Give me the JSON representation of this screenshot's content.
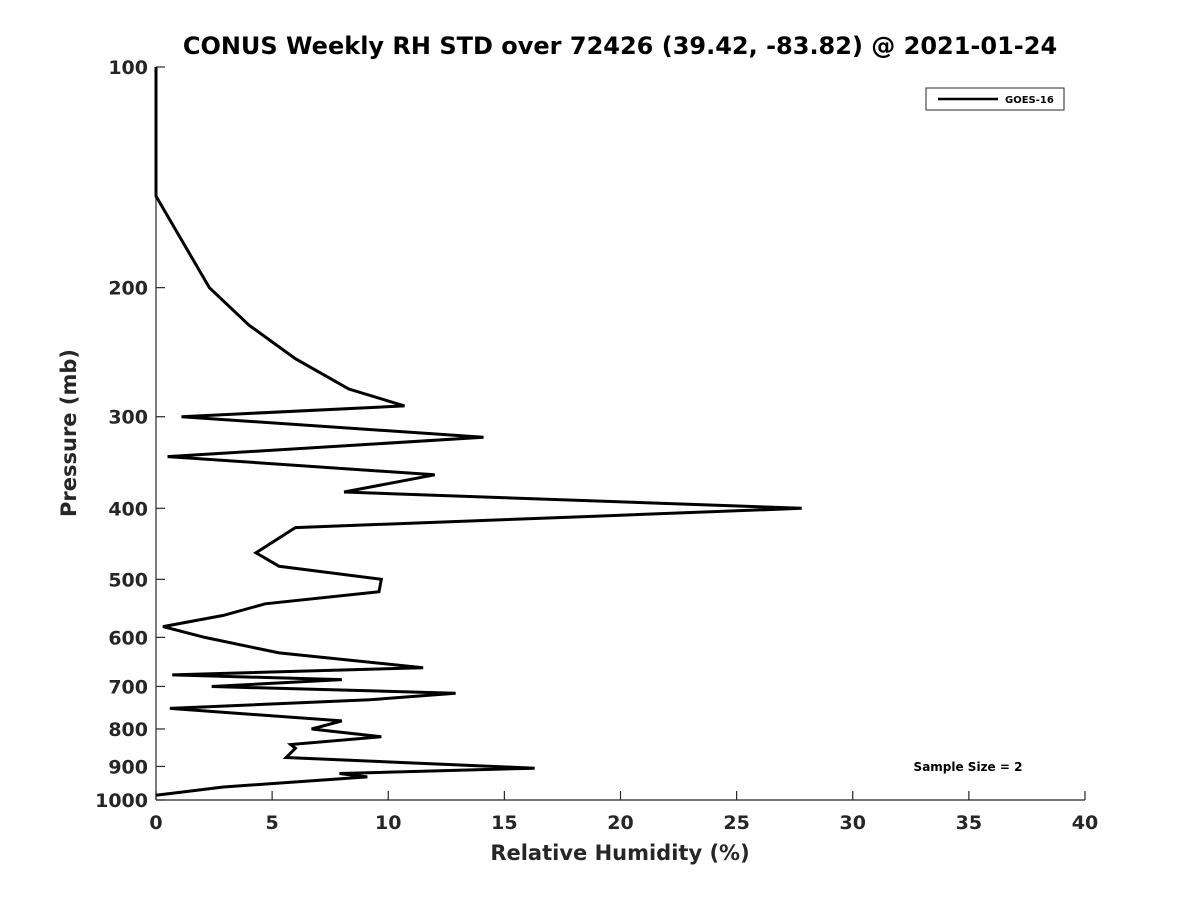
{
  "chart_data": {
    "type": "line",
    "title": "CONUS Weekly RH STD over 72426 (39.42, -83.82) @ 2021-01-24",
    "xlabel": "Relative Humidity (%)",
    "ylabel": "Pressure (mb)",
    "xlim": [
      0,
      40
    ],
    "ylim": [
      100,
      1000
    ],
    "yscale": "log",
    "y_reversed": true,
    "xticks": [
      0,
      5,
      10,
      15,
      20,
      25,
      30,
      35,
      40
    ],
    "yticks": [
      100,
      200,
      300,
      400,
      500,
      600,
      700,
      800,
      900,
      1000
    ],
    "grid": false,
    "legend_position": "top-right",
    "annotation": "Sample Size = 2",
    "series": [
      {
        "name": "GOES-16",
        "color": "#000000",
        "points": [
          [
            0,
            100
          ],
          [
            0,
            150
          ],
          [
            2.3,
            200
          ],
          [
            4,
            225
          ],
          [
            6,
            250
          ],
          [
            8.3,
            275
          ],
          [
            10.7,
            290
          ],
          [
            1.1,
            300
          ],
          [
            14.1,
            320
          ],
          [
            0.5,
            340
          ],
          [
            12,
            360
          ],
          [
            8.1,
            380
          ],
          [
            27.8,
            400
          ],
          [
            18.9,
            410
          ],
          [
            6,
            425
          ],
          [
            4.3,
            460
          ],
          [
            5.3,
            480
          ],
          [
            9.7,
            500
          ],
          [
            9.6,
            520
          ],
          [
            4.7,
            540
          ],
          [
            2.9,
            560
          ],
          [
            0.3,
            580
          ],
          [
            2.1,
            600
          ],
          [
            5.3,
            630
          ],
          [
            11.5,
            660
          ],
          [
            0.7,
            675
          ],
          [
            8,
            685
          ],
          [
            2.4,
            700
          ],
          [
            12.9,
            715
          ],
          [
            9.2,
            730
          ],
          [
            0.6,
            750
          ],
          [
            8,
            780
          ],
          [
            6.7,
            800
          ],
          [
            9.7,
            820
          ],
          [
            5.8,
            840
          ],
          [
            6,
            850
          ],
          [
            5.6,
            875
          ],
          [
            16.3,
            905
          ],
          [
            7.9,
            920
          ],
          [
            9.1,
            930
          ],
          [
            2.9,
            960
          ],
          [
            0,
            985
          ]
        ]
      }
    ]
  }
}
